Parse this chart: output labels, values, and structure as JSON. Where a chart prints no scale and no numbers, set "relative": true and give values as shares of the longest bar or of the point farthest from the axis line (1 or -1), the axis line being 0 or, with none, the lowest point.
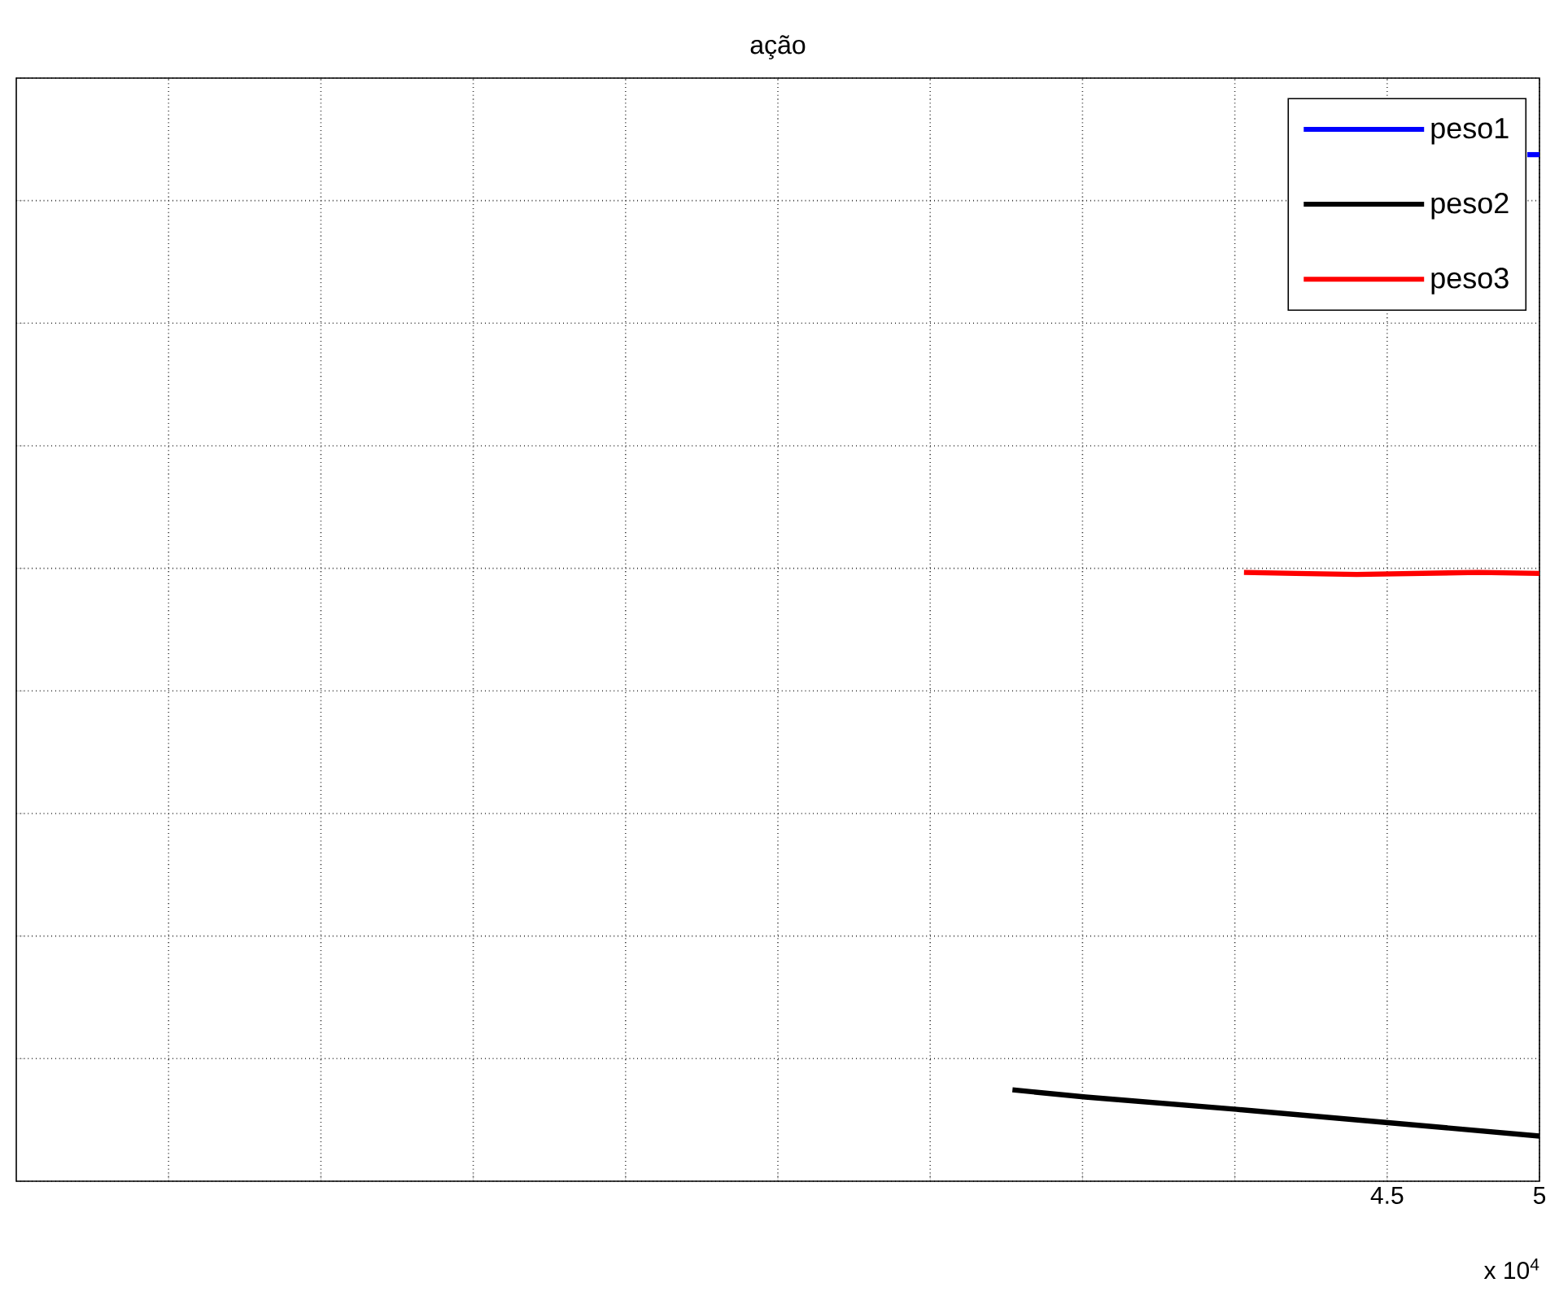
{
  "chart_data": {
    "type": "line",
    "title": "ação",
    "relative": true,
    "grid": true,
    "legend": "top right",
    "marker": "none",
    "line_style": "solid",
    "xlim": [
      0,
      5
    ],
    "xticks": [
      {
        "value": 0.5,
        "label": null
      },
      {
        "value": 1,
        "label": null
      },
      {
        "value": 1.5,
        "label": null
      },
      {
        "value": 2,
        "label": null
      },
      {
        "value": 2.5,
        "label": null
      },
      {
        "value": 3,
        "label": null
      },
      {
        "value": 3.5,
        "label": null
      },
      {
        "value": 4,
        "label": null
      },
      4.5,
      5
    ],
    "annotations": [
      "x 10$^{4}$"
    ],
    "series": [
      {
        "name": "peso1",
        "color": "#0000ff",
        "x": [
          4.96,
          5
        ],
        "values": [
          1,
          1
        ]
      },
      {
        "name": "peso2",
        "color": "#000000",
        "x": [
          3.27,
          3.51,
          4.006,
          4.503,
          5
        ],
        "values": [
          0.089,
          0.082,
          0.07,
          0.057,
          0.044
        ]
      },
      {
        "name": "peso3",
        "color": "#ff0000",
        "x": [
          4.03,
          4.2,
          4.4,
          4.6,
          4.8,
          5
        ],
        "values": [
          0.593,
          0.592,
          0.591,
          0.592,
          0.593,
          0.592
        ]
      }
    ]
  }
}
